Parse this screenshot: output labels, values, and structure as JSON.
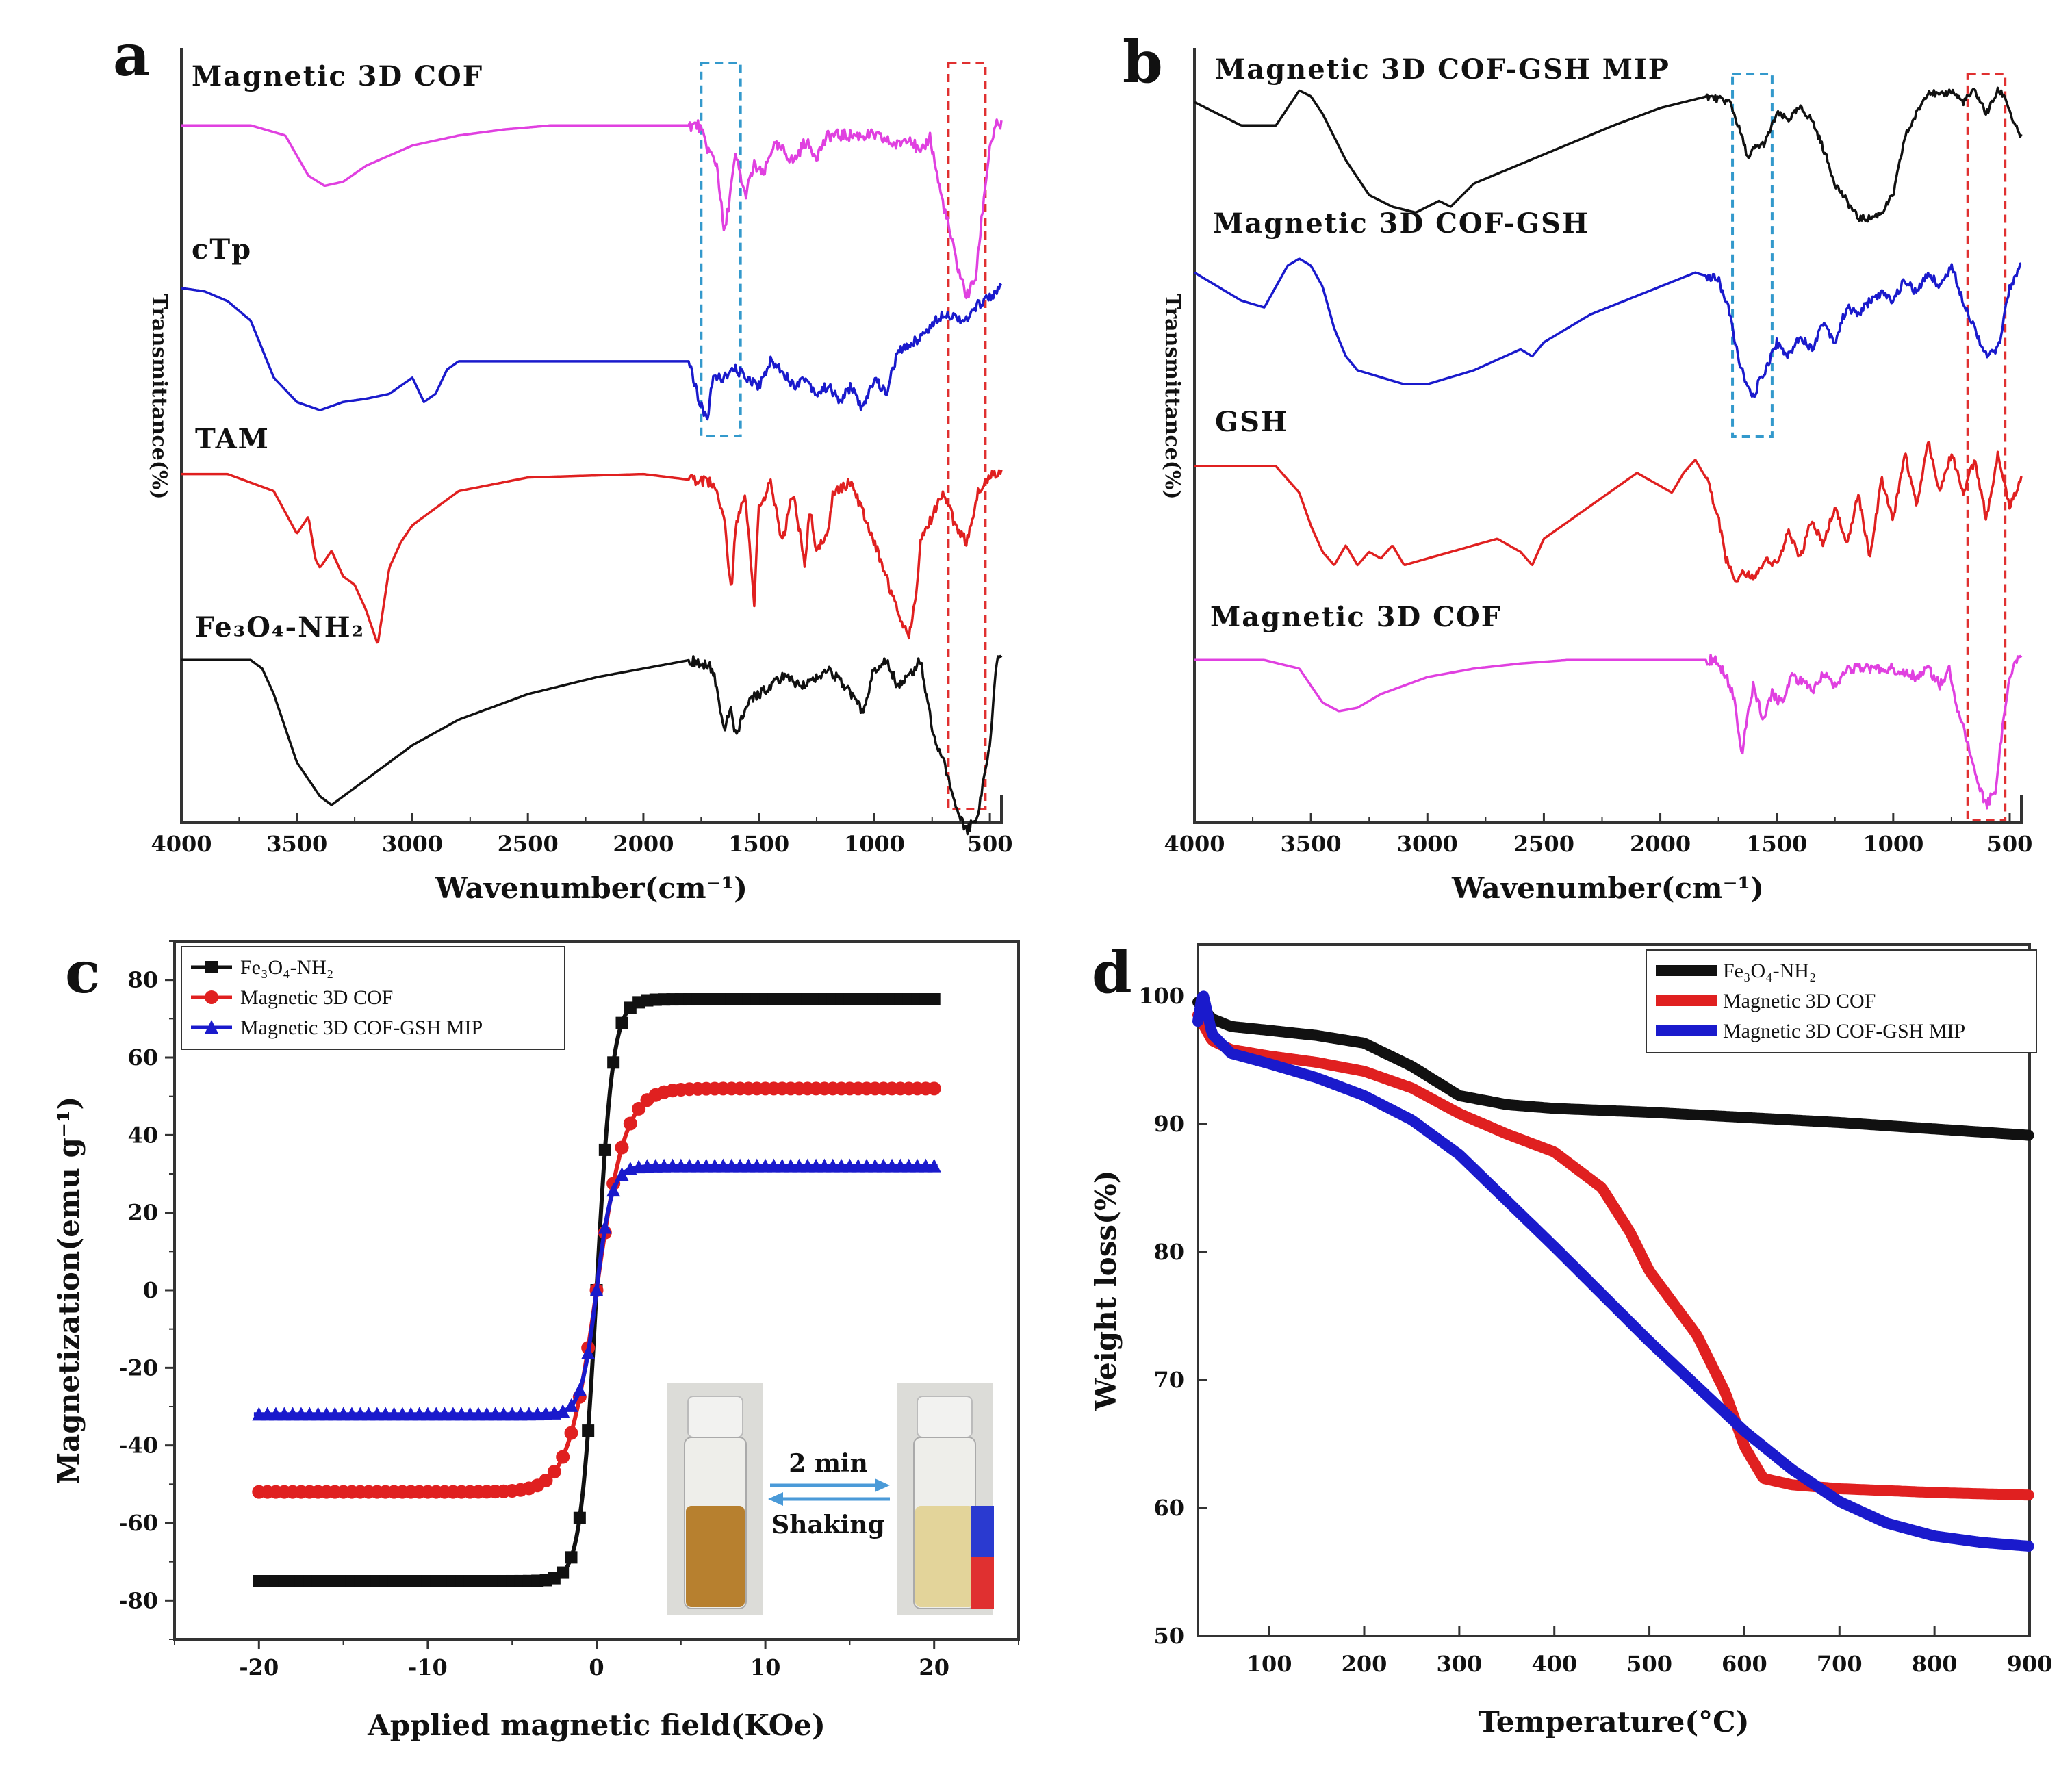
{
  "chart_data": [
    {
      "panel": "a",
      "type": "line",
      "subtype": "FTIR stacked spectra",
      "xlabel": "Wavenumber(cm⁻¹)",
      "ylabel": "Transmittance(%)",
      "xlim": [
        4000,
        450
      ],
      "xticks": [
        4000,
        3500,
        3000,
        2500,
        2000,
        1500,
        1000,
        500
      ],
      "highlight_boxes": [
        {
          "color": "#3399cc",
          "from": 1750,
          "to": 1580
        },
        {
          "color": "#e03030",
          "from": 680,
          "to": 520
        }
      ],
      "series": [
        {
          "name": "Magnetic 3D COF",
          "color": "#e040e0",
          "offset": 0.9,
          "depth": 0.26,
          "x": [
            4000,
            3700,
            3550,
            3450,
            3380,
            3300,
            3200,
            3000,
            2800,
            2600,
            2400,
            2000,
            1760,
            1720,
            1680,
            1650,
            1620,
            1600,
            1560,
            1520,
            1480,
            1440,
            1400,
            1350,
            1300,
            1250,
            1200,
            1100,
            1000,
            900,
            850,
            800,
            760,
            720,
            680,
            640,
            600,
            560,
            530,
            500,
            470,
            450
          ],
          "y": [
            0,
            0,
            -0.05,
            -0.25,
            -0.3,
            -0.28,
            -0.2,
            -0.1,
            -0.05,
            -0.02,
            0,
            0,
            0,
            -0.12,
            -0.2,
            -0.55,
            -0.3,
            -0.15,
            -0.35,
            -0.2,
            -0.25,
            -0.1,
            -0.12,
            -0.18,
            -0.08,
            -0.15,
            -0.05,
            -0.05,
            -0.05,
            -0.1,
            -0.05,
            -0.15,
            -0.05,
            -0.3,
            -0.5,
            -0.7,
            -0.85,
            -0.75,
            -0.4,
            -0.1,
            0,
            0
          ]
        },
        {
          "name": "cTp",
          "color": "#1a1acc",
          "offset": 0.69,
          "depth": 0.21,
          "x": [
            4000,
            3900,
            3800,
            3700,
            3600,
            3500,
            3400,
            3300,
            3200,
            3100,
            3000,
            2950,
            2900,
            2850,
            2800,
            2000,
            1800,
            1760,
            1720,
            1700,
            1650,
            1600,
            1500,
            1450,
            1400,
            1350,
            1300,
            1250,
            1200,
            1150,
            1100,
            1050,
            1000,
            950,
            900,
            800,
            700,
            600,
            550,
            500,
            450
          ],
          "y": [
            0,
            -0.02,
            -0.08,
            -0.2,
            -0.55,
            -0.7,
            -0.75,
            -0.7,
            -0.68,
            -0.65,
            -0.55,
            -0.7,
            -0.65,
            -0.5,
            -0.45,
            -0.45,
            -0.45,
            -0.7,
            -0.8,
            -0.55,
            -0.55,
            -0.5,
            -0.6,
            -0.45,
            -0.5,
            -0.6,
            -0.55,
            -0.65,
            -0.6,
            -0.7,
            -0.6,
            -0.75,
            -0.55,
            -0.65,
            -0.4,
            -0.3,
            -0.15,
            -0.2,
            -0.1,
            -0.05,
            0
          ]
        },
        {
          "name": "TAM",
          "color": "#e02020",
          "offset": 0.45,
          "depth": 0.22,
          "x": [
            4000,
            3800,
            3700,
            3600,
            3500,
            3450,
            3420,
            3400,
            3350,
            3300,
            3250,
            3200,
            3150,
            3100,
            3050,
            3000,
            2900,
            2800,
            2500,
            2000,
            1700,
            1650,
            1620,
            1600,
            1560,
            1520,
            1500,
            1480,
            1450,
            1400,
            1350,
            1300,
            1280,
            1250,
            1200,
            1180,
            1100,
            1000,
            900,
            850,
            820,
            800,
            700,
            650,
            600,
            550,
            500,
            450
          ],
          "y": [
            0,
            0,
            -0.05,
            -0.1,
            -0.35,
            -0.25,
            -0.5,
            -0.55,
            -0.45,
            -0.6,
            -0.65,
            -0.8,
            -1.0,
            -0.55,
            -0.4,
            -0.3,
            -0.2,
            -0.1,
            -0.02,
            0,
            -0.05,
            -0.25,
            -0.7,
            -0.3,
            -0.1,
            -0.75,
            -0.2,
            -0.15,
            -0.05,
            -0.4,
            -0.1,
            -0.55,
            -0.2,
            -0.45,
            -0.35,
            -0.1,
            -0.05,
            -0.4,
            -0.8,
            -0.95,
            -0.7,
            -0.4,
            -0.1,
            -0.3,
            -0.4,
            -0.1,
            0,
            0
          ]
        },
        {
          "name": "Fe₃O₄-NH₂",
          "color": "#111111",
          "offset": 0.21,
          "depth": 0.22,
          "x": [
            4000,
            3800,
            3700,
            3650,
            3600,
            3500,
            3400,
            3350,
            3300,
            3200,
            3000,
            2800,
            2500,
            2200,
            2000,
            1800,
            1700,
            1650,
            1620,
            1600,
            1550,
            1500,
            1400,
            1300,
            1200,
            1100,
            1050,
            1000,
            950,
            900,
            850,
            800,
            750,
            700,
            650,
            600,
            550,
            500,
            470,
            450
          ],
          "y": [
            0,
            0,
            0,
            -0.05,
            -0.2,
            -0.6,
            -0.8,
            -0.85,
            -0.8,
            -0.7,
            -0.5,
            -0.35,
            -0.2,
            -0.1,
            -0.05,
            0,
            -0.05,
            -0.4,
            -0.3,
            -0.45,
            -0.25,
            -0.2,
            -0.1,
            -0.15,
            -0.05,
            -0.2,
            -0.3,
            -0.05,
            0,
            -0.15,
            -0.1,
            0,
            -0.4,
            -0.6,
            -0.85,
            -1.0,
            -0.9,
            -0.5,
            0,
            0
          ]
        }
      ]
    },
    {
      "panel": "b",
      "type": "line",
      "subtype": "FTIR stacked spectra",
      "xlabel": "Wavenumber(cm⁻¹)",
      "ylabel": "Transmittance(%)",
      "xlim": [
        4000,
        450
      ],
      "xticks": [
        4000,
        3500,
        3000,
        2500,
        2000,
        1500,
        1000,
        500
      ],
      "highlight_boxes": [
        {
          "color": "#3399cc",
          "from": 1690,
          "to": 1520
        },
        {
          "color": "#e03030",
          "from": 680,
          "to": 520
        }
      ],
      "series": [
        {
          "name": "Magnetic 3D COF-GSH MIP",
          "color": "#111111",
          "offset": 0.93,
          "depth": 0.15,
          "x": [
            4000,
            3800,
            3650,
            3550,
            3500,
            3450,
            3350,
            3250,
            3150,
            3050,
            2950,
            2900,
            2800,
            2500,
            2200,
            2000,
            1800,
            1700,
            1650,
            1620,
            1600,
            1550,
            1500,
            1450,
            1400,
            1350,
            1300,
            1250,
            1200,
            1150,
            1100,
            1050,
            1000,
            950,
            900,
            850,
            800,
            750,
            700,
            650,
            600,
            550,
            520,
            480,
            450
          ],
          "y": [
            0,
            -0.2,
            -0.2,
            0.1,
            0.05,
            -0.1,
            -0.5,
            -0.8,
            -0.9,
            -0.95,
            -0.85,
            -0.9,
            -0.7,
            -0.45,
            -0.2,
            -0.05,
            0.05,
            0,
            -0.3,
            -0.5,
            -0.4,
            -0.35,
            -0.1,
            -0.15,
            -0.05,
            -0.15,
            -0.4,
            -0.7,
            -0.85,
            -1.0,
            -1.0,
            -0.95,
            -0.8,
            -0.3,
            -0.1,
            0.1,
            0.05,
            0.1,
            0,
            0.1,
            -0.1,
            0.1,
            0.05,
            -0.2,
            -0.3
          ]
        },
        {
          "name": "Magnetic 3D COF-GSH",
          "color": "#1a1acc",
          "offset": 0.71,
          "depth": 0.18,
          "x": [
            4000,
            3800,
            3700,
            3600,
            3550,
            3500,
            3450,
            3400,
            3350,
            3300,
            3200,
            3100,
            3000,
            2800,
            2600,
            2550,
            2500,
            2300,
            2000,
            1850,
            1750,
            1700,
            1680,
            1650,
            1620,
            1600,
            1580,
            1550,
            1500,
            1450,
            1400,
            1350,
            1300,
            1250,
            1200,
            1150,
            1100,
            1050,
            1000,
            950,
            900,
            850,
            800,
            750,
            700,
            650,
            600,
            550,
            500,
            450
          ],
          "y": [
            0,
            -0.2,
            -0.25,
            0.05,
            0.1,
            0.05,
            -0.1,
            -0.4,
            -0.6,
            -0.7,
            -0.75,
            -0.8,
            -0.8,
            -0.7,
            -0.55,
            -0.6,
            -0.5,
            -0.3,
            -0.1,
            0,
            -0.05,
            -0.3,
            -0.5,
            -0.7,
            -0.85,
            -0.9,
            -0.8,
            -0.7,
            -0.5,
            -0.6,
            -0.45,
            -0.55,
            -0.35,
            -0.5,
            -0.25,
            -0.3,
            -0.2,
            -0.15,
            -0.2,
            -0.05,
            -0.15,
            0,
            -0.1,
            0.05,
            -0.2,
            -0.4,
            -0.6,
            -0.55,
            -0.1,
            0.05
          ]
        },
        {
          "name": "GSH",
          "color": "#e02020",
          "offset": 0.46,
          "depth": 0.17,
          "x": [
            4000,
            3800,
            3650,
            3550,
            3500,
            3450,
            3400,
            3350,
            3300,
            3250,
            3200,
            3150,
            3100,
            3000,
            2900,
            2800,
            2700,
            2600,
            2550,
            2500,
            2300,
            2100,
            1950,
            1900,
            1850,
            1800,
            1750,
            1720,
            1700,
            1680,
            1650,
            1600,
            1550,
            1500,
            1450,
            1400,
            1350,
            1300,
            1250,
            1200,
            1150,
            1100,
            1050,
            1000,
            950,
            900,
            850,
            800,
            750,
            700,
            650,
            600,
            550,
            500,
            450
          ],
          "y": [
            0,
            0,
            0,
            -0.2,
            -0.45,
            -0.65,
            -0.75,
            -0.6,
            -0.75,
            -0.65,
            -0.7,
            -0.6,
            -0.75,
            -0.7,
            -0.65,
            -0.6,
            -0.55,
            -0.65,
            -0.75,
            -0.55,
            -0.3,
            -0.05,
            -0.2,
            -0.05,
            0.05,
            -0.1,
            -0.4,
            -0.7,
            -0.75,
            -0.9,
            -0.8,
            -0.85,
            -0.7,
            -0.75,
            -0.5,
            -0.7,
            -0.4,
            -0.6,
            -0.3,
            -0.6,
            -0.2,
            -0.7,
            -0.1,
            -0.4,
            0.1,
            -0.3,
            0.2,
            -0.2,
            0.1,
            -0.2,
            0.05,
            -0.4,
            0.1,
            -0.3,
            -0.1
          ]
        },
        {
          "name": "Magnetic 3D COF",
          "color": "#e040e0",
          "offset": 0.21,
          "depth": 0.22,
          "x": [
            4000,
            3700,
            3550,
            3450,
            3380,
            3300,
            3200,
            3000,
            2800,
            2600,
            2400,
            2000,
            1760,
            1700,
            1680,
            1650,
            1620,
            1600,
            1560,
            1520,
            1480,
            1440,
            1400,
            1350,
            1300,
            1250,
            1200,
            1100,
            1000,
            900,
            850,
            800,
            760,
            720,
            680,
            640,
            600,
            560,
            530,
            500,
            470,
            450
          ],
          "y": [
            0,
            0,
            -0.05,
            -0.25,
            -0.3,
            -0.28,
            -0.2,
            -0.1,
            -0.05,
            -0.02,
            0,
            0,
            0,
            -0.15,
            -0.25,
            -0.55,
            -0.3,
            -0.15,
            -0.35,
            -0.2,
            -0.25,
            -0.1,
            -0.12,
            -0.18,
            -0.08,
            -0.15,
            -0.05,
            -0.05,
            -0.05,
            -0.1,
            -0.05,
            -0.15,
            -0.05,
            -0.3,
            -0.5,
            -0.7,
            -0.85,
            -0.75,
            -0.4,
            -0.1,
            0,
            0
          ]
        }
      ]
    },
    {
      "panel": "c",
      "type": "line",
      "subtype": "magnetic hysteresis",
      "xlabel": "Applied magnetic field(KOe)",
      "ylabel": "Magnetization(emu g⁻¹)",
      "xlim": [
        -25,
        25
      ],
      "ylim": [
        -90,
        90
      ],
      "xticks": [
        -20,
        -10,
        0,
        10,
        20
      ],
      "yticks": [
        -80,
        -60,
        -40,
        -20,
        0,
        20,
        40,
        60,
        80
      ],
      "legend_position": "top-left",
      "series": [
        {
          "name": "Fe₃O₄-NH₂",
          "color": "#111111",
          "marker": "square",
          "ms": 75,
          "width": 0.95
        },
        {
          "name": "Magnetic 3D COF",
          "color": "#e02020",
          "marker": "circle",
          "ms": 52,
          "width": 1.7
        },
        {
          "name": "Magnetic 3D COF-GSH MIP",
          "color": "#1a1acc",
          "marker": "triangle",
          "ms": 32,
          "width": 0.9
        }
      ],
      "inset": {
        "arrow_top_label": "2 min",
        "arrow_bottom_label": "Shaking"
      }
    },
    {
      "panel": "d",
      "type": "line",
      "subtype": "TGA",
      "xlabel": "Temperature(°C)",
      "ylabel": "Weight loss(%)",
      "xlim": [
        25,
        900
      ],
      "ylim": [
        50,
        104
      ],
      "xticks": [
        100,
        200,
        300,
        400,
        500,
        600,
        700,
        800,
        900
      ],
      "yticks": [
        50,
        60,
        70,
        80,
        90,
        100
      ],
      "legend_position": "top-right",
      "series": [
        {
          "name": "Fe₃O₄-NH₂",
          "color": "#111111",
          "x": [
            25,
            40,
            60,
            100,
            150,
            200,
            250,
            300,
            350,
            400,
            500,
            600,
            700,
            800,
            900
          ],
          "y": [
            99.5,
            98.2,
            97.6,
            97.3,
            96.9,
            96.3,
            94.5,
            92.2,
            91.5,
            91.2,
            90.9,
            90.5,
            90.1,
            89.6,
            89.1
          ]
        },
        {
          "name": "Magnetic 3D COF",
          "color": "#e02020",
          "x": [
            25,
            40,
            60,
            100,
            150,
            200,
            250,
            300,
            350,
            400,
            450,
            480,
            500,
            550,
            580,
            600,
            620,
            650,
            700,
            800,
            900
          ],
          "y": [
            98.5,
            96.5,
            95.8,
            95.3,
            94.8,
            94.1,
            92.8,
            90.8,
            89.2,
            87.8,
            85.0,
            81.5,
            78.5,
            73.5,
            69.0,
            64.8,
            62.3,
            61.8,
            61.5,
            61.2,
            61.0
          ]
        },
        {
          "name": "Magnetic 3D COF-GSH MIP",
          "color": "#1a1acc",
          "x": [
            25,
            30,
            40,
            60,
            100,
            150,
            200,
            250,
            300,
            350,
            400,
            450,
            500,
            550,
            600,
            650,
            700,
            750,
            800,
            850,
            900
          ],
          "y": [
            98.0,
            100.3,
            97.0,
            95.5,
            94.7,
            93.6,
            92.2,
            90.3,
            87.6,
            84.0,
            80.4,
            76.7,
            73.0,
            69.5,
            66.0,
            63.0,
            60.5,
            58.8,
            57.8,
            57.3,
            57.0
          ]
        }
      ]
    }
  ],
  "panel_letters": {
    "a": "a",
    "b": "b",
    "c": "c",
    "d": "d"
  }
}
